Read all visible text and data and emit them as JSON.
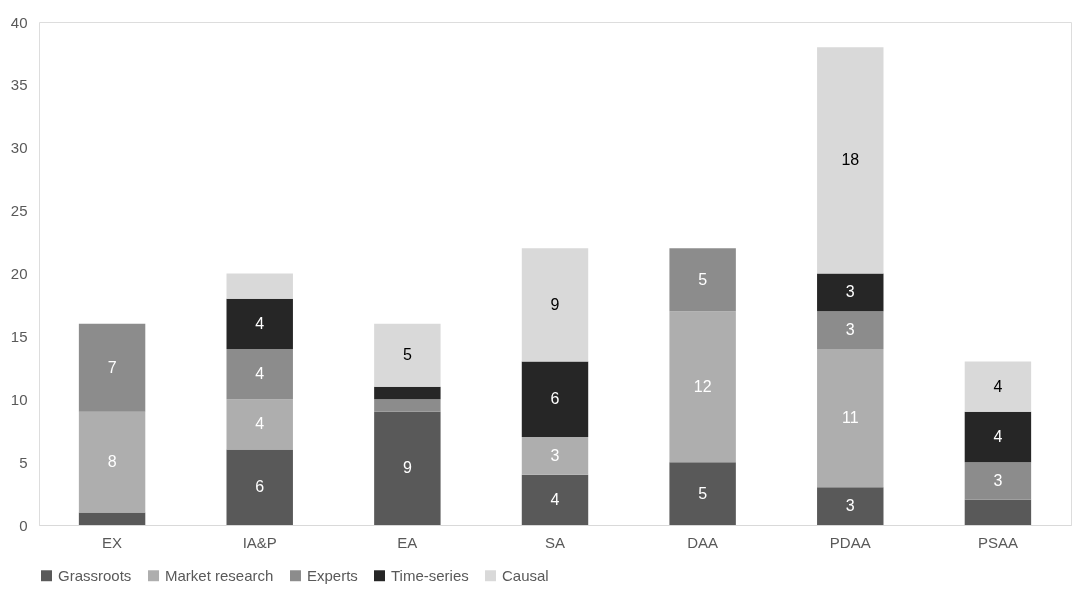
{
  "chart_data": {
    "type": "bar",
    "stacked": true,
    "categories": [
      "EX",
      "IA&P",
      "EA",
      "SA",
      "DAA",
      "PDAA",
      "PSAA"
    ],
    "series": [
      {
        "name": "Grassroots",
        "color": "#595959",
        "values": [
          1,
          6,
          9,
          4,
          5,
          3,
          2
        ],
        "value_labels": [
          null,
          "6",
          "9",
          "4",
          "5",
          "3",
          null
        ]
      },
      {
        "name": "Market research",
        "color": "#aeaeae",
        "values": [
          8,
          4,
          null,
          3,
          12,
          11,
          null
        ],
        "value_labels": [
          "8",
          "4",
          null,
          "3",
          "12",
          "11",
          null
        ]
      },
      {
        "name": "Experts",
        "color": "#8c8c8c",
        "values": [
          7,
          4,
          1,
          null,
          5,
          3,
          3
        ],
        "value_labels": [
          "7",
          "4",
          null,
          null,
          "5",
          "3",
          "3"
        ]
      },
      {
        "name": "Time-series",
        "color": "#262626",
        "values": [
          null,
          4,
          1,
          6,
          null,
          3,
          4
        ],
        "value_labels": [
          null,
          "4",
          null,
          "6",
          null,
          "3",
          "4"
        ]
      },
      {
        "name": "Causal",
        "color": "#d9d9d9",
        "values": [
          null,
          2,
          5,
          9,
          null,
          18,
          4
        ],
        "value_labels": [
          null,
          null,
          "5",
          "9",
          null,
          "18",
          "4"
        ]
      }
    ],
    "ylim": [
      0,
      40
    ],
    "yticks": [
      0,
      5,
      10,
      15,
      20,
      25,
      30,
      35,
      40
    ],
    "grid": false,
    "legend": "bottom"
  }
}
